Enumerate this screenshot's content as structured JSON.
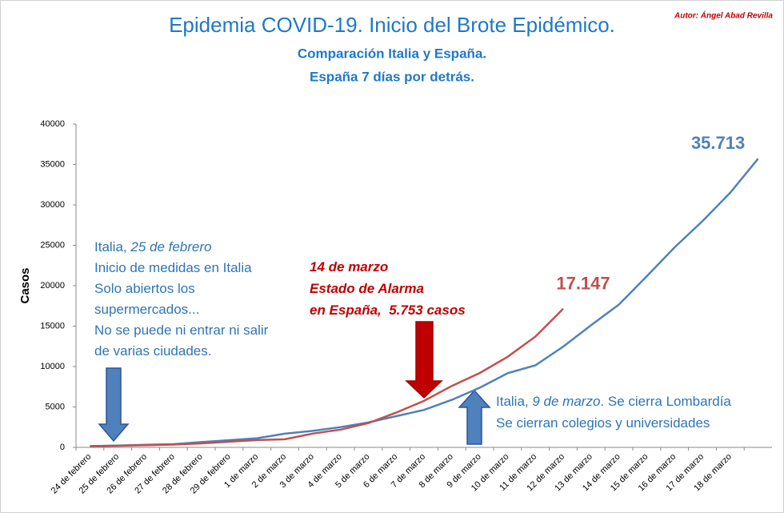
{
  "chart_data": {
    "type": "line",
    "title": "Epidemia COVID-19. Inicio del Brote Epidémico.",
    "subtitle": [
      "Comparación Italia y España.",
      "España 7 días por detrás."
    ],
    "author": "Autor: Ángel Abad Revilla",
    "y_label": "Casos",
    "categories": [
      "24 de febrero",
      "25 de febrero",
      "26 de febrero",
      "27 de febrero",
      "28 de febrero",
      "29 de febrero",
      "1 de marzo",
      "2 de marzo",
      "3 de marzo",
      "4 de marzo",
      "5 de marzo",
      "6 de marzo",
      "7 de marzo",
      "8 de marzo",
      "9 de marzo",
      "10 de marzo",
      "11 de marzo",
      "12 de marzo",
      "13 de marzo",
      "14 de marzo",
      "15 de marzo",
      "16 de marzo",
      "17 de marzo",
      "18 de marzo",
      null
    ],
    "series": [
      {
        "color": "#4f81bd",
        "values": [
          155,
          229,
          322,
          400,
          650,
          888,
          1128,
          1694,
          2036,
          2502,
          3089,
          3858,
          4636,
          5883,
          7375,
          9172,
          10149,
          12462,
          15113,
          17660,
          21157,
          24747,
          27980,
          31506,
          35713
        ],
        "value_labels": [
          null,
          null,
          null,
          null,
          null,
          null,
          null,
          null,
          null,
          null,
          null,
          null,
          null,
          null,
          null,
          null,
          null,
          null,
          null,
          null,
          null,
          null,
          null,
          null,
          "35.713"
        ]
      },
      {
        "color": "#c0504d",
        "values": [
          150,
          200,
          280,
          350,
          500,
          700,
          900,
          1000,
          1700,
          2200,
          3000,
          4300,
          5753,
          7600,
          9200,
          11200,
          13700,
          17147,
          null,
          null,
          null,
          null,
          null,
          null,
          null
        ],
        "value_labels": [
          null,
          null,
          null,
          null,
          null,
          null,
          null,
          null,
          null,
          null,
          null,
          null,
          null,
          null,
          null,
          null,
          null,
          "17.147",
          null,
          null,
          null,
          null,
          null,
          null,
          null
        ]
      }
    ],
    "ylim": [
      0,
      40000
    ],
    "yticks": [
      0,
      5000,
      10000,
      15000,
      20000,
      25000,
      30000,
      35000,
      40000
    ],
    "grid": false,
    "annotations": [
      {
        "lines": [
          [
            "Italia, ",
            "25 de febrero"
          ],
          [
            "Inicio de medidas en Italia"
          ],
          [
            "Solo abiertos los"
          ],
          [
            "supermercados..."
          ],
          [
            "No se puede ni entrar ni salir"
          ],
          [
            "de varias ciudades."
          ]
        ]
      },
      {
        "lines": [
          [
            "14 de marzo"
          ],
          [
            "Estado de Alarma"
          ],
          [
            "en España,  5.753 casos"
          ]
        ]
      },
      {
        "lines": [
          [
            "Italia, ",
            "9 de marzo",
            ". Se cierra Lombardía"
          ],
          [
            "Se cierran colegios y universidades"
          ]
        ]
      }
    ]
  }
}
